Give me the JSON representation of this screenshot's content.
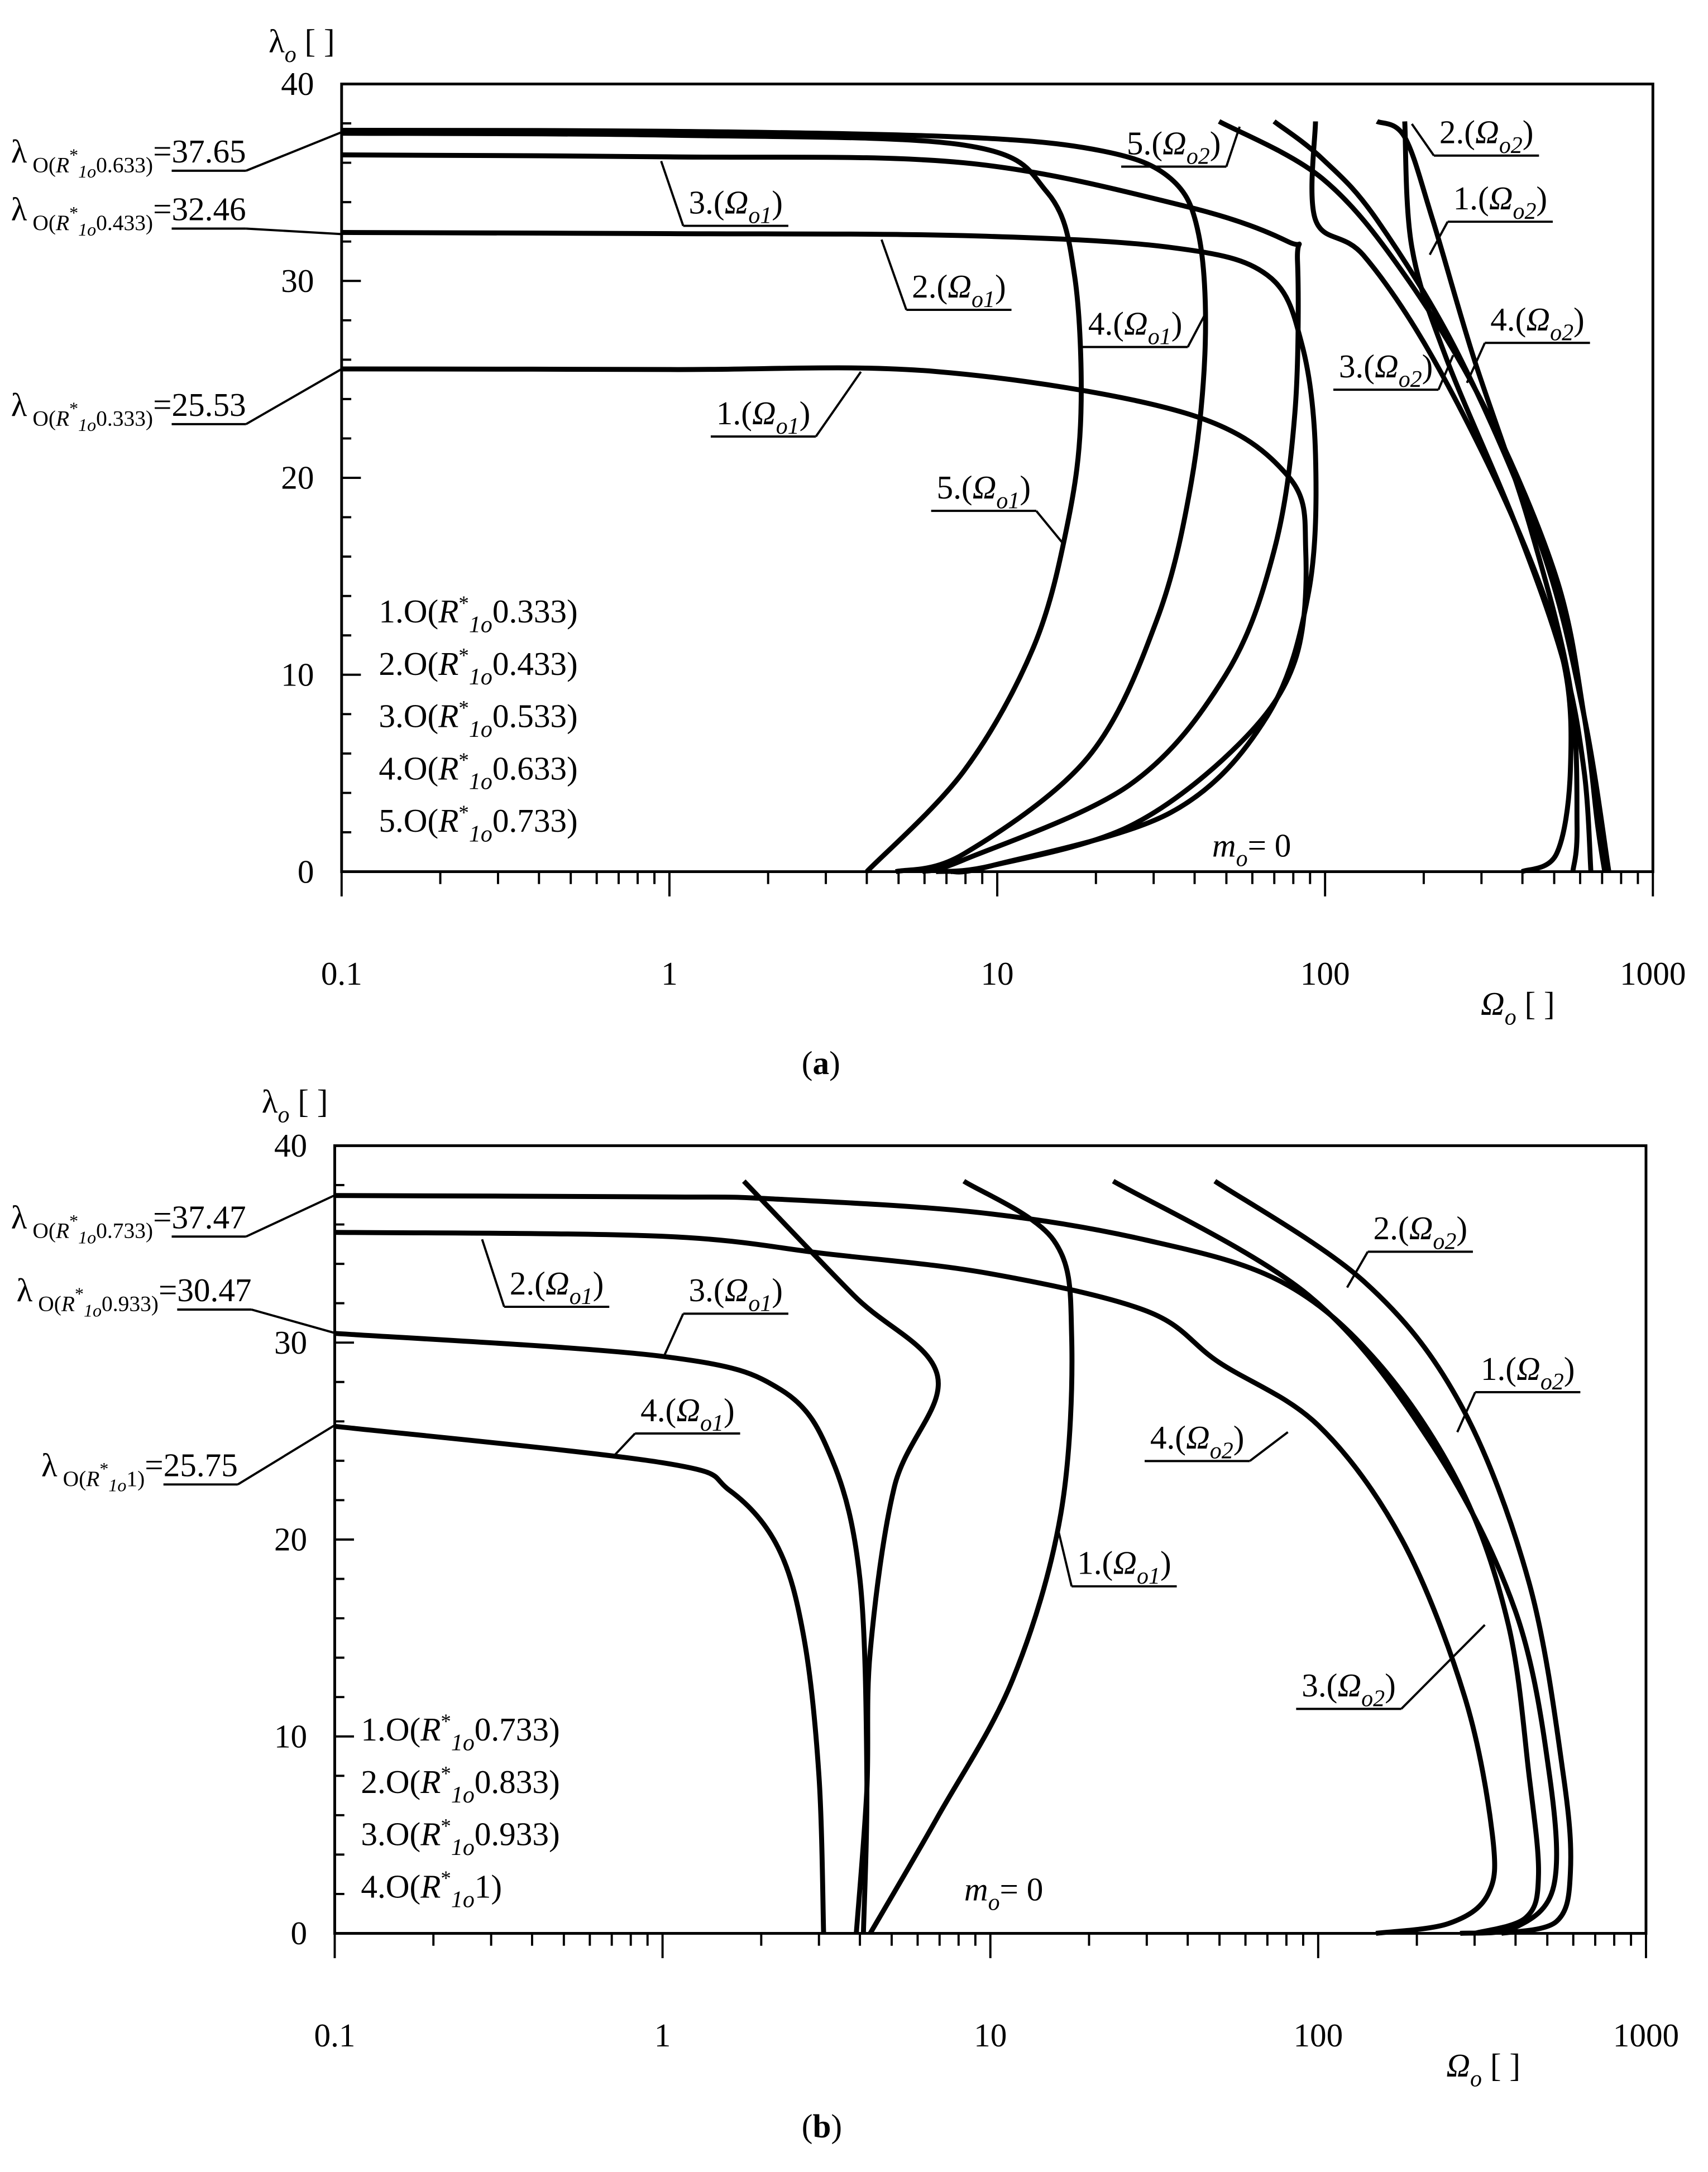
{
  "chart_data": [
    {
      "type": "line",
      "caption": [
        "(",
        "a",
        ")"
      ],
      "y_label": [
        "λ",
        "o",
        " [ ]"
      ],
      "x_label": [
        "Ω",
        "o",
        " [ ]"
      ],
      "annotation": [
        "m",
        "o",
        "= 0"
      ],
      "xscale": "log",
      "xlim": [
        0.1,
        1000
      ],
      "xticks": [
        0.1,
        1,
        10,
        100,
        1000
      ],
      "xminorticks": [
        0.2,
        0.3,
        0.4,
        0.5,
        0.6,
        0.7,
        0.8,
        0.9,
        2,
        3,
        4,
        5,
        6,
        7,
        8,
        9,
        20,
        30,
        40,
        50,
        60,
        70,
        80,
        90,
        200,
        300,
        400,
        500,
        600,
        700,
        800,
        900
      ],
      "ylim": [
        0,
        40
      ],
      "yticks": [
        0,
        10,
        20,
        30,
        40
      ],
      "yminorticks": [
        2,
        4,
        6,
        8,
        12,
        14,
        16,
        18,
        22,
        24,
        26,
        28,
        32,
        34,
        36,
        38
      ],
      "start_labels": [
        {
          "parts": [
            "λ",
            " O(",
            "R",
            "*",
            "1o",
            "0.633)",
            "="
          ],
          "value": 37.65
        },
        {
          "parts": [
            "λ",
            " O(",
            "R",
            "*",
            "1o",
            "0.433)",
            "="
          ],
          "value": 32.46
        },
        {
          "parts": [
            "λ",
            " O(",
            "R",
            "*",
            "1o",
            "0.333)",
            "="
          ],
          "value": 25.53
        }
      ],
      "legend": [
        [
          "1.O(",
          "R",
          "*",
          "1o",
          "0.333)"
        ],
        [
          "2.O(",
          "R",
          "*",
          "1o",
          "0.433)"
        ],
        [
          "3.O(",
          "R",
          "*",
          "1o",
          "0.533)"
        ],
        [
          "4.O(",
          "R",
          "*",
          "1o",
          "0.633)"
        ],
        [
          "5.O(",
          "R",
          "*",
          "1o",
          "0.733)"
        ]
      ],
      "series": [
        {
          "name": [
            "1.(",
            "Ω",
            "o1",
            ")"
          ],
          "color": "#000000",
          "x": [
            0.1,
            1,
            6.5,
            37.3,
            77,
            87.3,
            80.9,
            54.8,
            25.3,
            9.6,
            6.5
          ],
          "values": [
            25.53,
            25.5,
            25.4,
            23.3,
            20.1,
            16.3,
            10.7,
            6.5,
            2.3,
            0.3,
            0
          ]
        },
        {
          "name": [
            "2.(",
            "Ω",
            "o1",
            ")"
          ],
          "color": "#000000",
          "x": [
            0.1,
            1,
            7.9,
            33.8,
            66.6,
            84.9,
            93.5,
            89.1,
            66.6,
            33.8,
            9.6,
            7.2
          ],
          "values": [
            32.46,
            32.4,
            32.3,
            31.7,
            30.3,
            26.8,
            21.2,
            14.2,
            7.9,
            3.0,
            0.3,
            0
          ]
        },
        {
          "name": [
            "3.(",
            "Ω",
            "o1",
            ")"
          ],
          "color": "#000000",
          "x": [
            0.1,
            1,
            7.9,
            37.3,
            77,
            82.4,
            80.9,
            69.9,
            49.8,
            25.3,
            7.9,
            5.9
          ],
          "values": [
            36.4,
            36.3,
            36.0,
            33.8,
            32.0,
            31.0,
            23.3,
            16.3,
            10.0,
            4.4,
            0.6,
            0
          ]
        },
        {
          "name": [
            "4.(",
            "Ω",
            "o1",
            ")"
          ],
          "color": "#000000",
          "x": [
            0.1,
            1,
            7.9,
            20.9,
            33.8,
            41.1,
            43.1,
            39.1,
            30.7,
            18.9,
            7.9,
            4.9
          ],
          "values": [
            37.65,
            37.6,
            37.3,
            36.6,
            35.2,
            32.4,
            26.8,
            19.8,
            12.8,
            5.8,
            0.9,
            0
          ]
        },
        {
          "name": [
            "5.(",
            "Ω",
            "o1",
            ")"
          ],
          "color": "#000000",
          "x": [
            0.1,
            1,
            7.9,
            14.2,
            17.2,
            18.0,
            16.4,
            12.9,
            7.9,
            4.0
          ],
          "values": [
            37.5,
            37.4,
            36.9,
            34.5,
            30.3,
            23.3,
            17.7,
            11.4,
            5.1,
            0
          ]
        },
        {
          "name": [
            "1.(",
            "Ω",
            "o2",
            ")"
          ],
          "color": "#000000",
          "x": [
            175,
            184,
            234,
            380,
            533,
            617,
            647
          ],
          "values": [
            38.1,
            31.7,
            26.1,
            17.7,
            10.7,
            5.1,
            0
          ]
        },
        {
          "name": [
            "2.(",
            "Ω",
            "o2",
            ")"
          ],
          "color": "#000000",
          "x": [
            144,
            175,
            213,
            284,
            419,
            560,
            587,
            570
          ],
          "values": [
            38.1,
            37.3,
            33.1,
            26.1,
            17.7,
            9.3,
            2.3,
            0
          ]
        },
        {
          "name": [
            "3.(",
            "Ω",
            "o2",
            ")"
          ],
          "color": "#000000",
          "x": [
            93.5,
            93.5,
            131,
            213,
            380,
            533,
            560,
            508,
            399
          ],
          "values": [
            38.1,
            33.1,
            31.3,
            26.1,
            17.7,
            10.7,
            5.1,
            0.9,
            0
          ]
        },
        {
          "name": [
            "4.(",
            "Ω",
            "o2",
            ")"
          ],
          "color": "#000000",
          "x": [
            69.9,
            98.1,
            144,
            258,
            461,
            617,
            734
          ],
          "values": [
            38.1,
            36.2,
            33.1,
            26.1,
            16.3,
            7.9,
            0
          ]
        },
        {
          "name": [
            "5.(",
            "Ω",
            "o2",
            ")"
          ],
          "color": "#000000",
          "x": [
            47.5,
            98.1,
            175,
            313,
            508,
            617,
            679,
            713
          ],
          "values": [
            38.1,
            35.2,
            30.3,
            23.3,
            14.9,
            7.9,
            2.3,
            0
          ]
        }
      ]
    },
    {
      "type": "line",
      "caption": [
        "(",
        "b",
        ")"
      ],
      "y_label": [
        "λ",
        "o",
        " [ ]"
      ],
      "x_label": [
        "Ω",
        "o",
        " [ ]"
      ],
      "annotation": [
        "m",
        "o",
        "= 0"
      ],
      "xscale": "log",
      "xlim": [
        0.1,
        1000
      ],
      "xticks": [
        0.1,
        1,
        10,
        100,
        1000
      ],
      "xminorticks": [
        0.2,
        0.3,
        0.4,
        0.5,
        0.6,
        0.7,
        0.8,
        0.9,
        2,
        3,
        4,
        5,
        6,
        7,
        8,
        9,
        20,
        30,
        40,
        50,
        60,
        70,
        80,
        90,
        200,
        300,
        400,
        500,
        600,
        700,
        800,
        900
      ],
      "ylim": [
        0,
        40
      ],
      "yticks": [
        0,
        10,
        20,
        30,
        40
      ],
      "yminorticks": [
        2,
        4,
        6,
        8,
        12,
        14,
        16,
        18,
        22,
        24,
        26,
        28,
        32,
        34,
        36,
        38
      ],
      "start_labels": [
        {
          "parts": [
            "λ",
            " O(",
            "R",
            "*",
            "1o",
            "0.733)",
            "="
          ],
          "value": 37.47
        },
        {
          "parts": [
            "λ",
            " O(",
            "R",
            "*",
            "1o",
            "0.933)",
            "="
          ],
          "value": 30.47
        },
        {
          "parts": [
            "λ",
            " O(",
            "R",
            "*",
            "1o",
            "1)",
            "="
          ],
          "value": 25.75
        }
      ],
      "legend": [
        [
          "1.O(",
          "R",
          "*",
          "1o",
          "0.733)"
        ],
        [
          "2.O(",
          "R",
          "*",
          "1o",
          "0.833)"
        ],
        [
          "3.O(",
          "R",
          "*",
          "1o",
          "0.933)"
        ],
        [
          "4.O(",
          "R",
          "*",
          "1o",
          "1)"
        ]
      ],
      "series": [
        {
          "name": [
            "1.(",
            "Ω",
            "o1",
            ")"
          ],
          "color": "#000000",
          "x": [
            8.3,
            15.6,
            17.7,
            16.4,
            11.7,
            6.9,
            4.3
          ],
          "values": [
            38.2,
            35.2,
            30.3,
            21.3,
            12.9,
            5.9,
            0
          ]
        },
        {
          "name": [
            "2.(",
            "Ω",
            "o1",
            ")"
          ],
          "color": "#000000",
          "x": [
            1.77,
            3.83,
            6.9,
            5.1,
            4.3,
            4.2,
            3.9
          ],
          "values": [
            38.2,
            32.4,
            28.3,
            22.7,
            14.3,
            7.3,
            0
          ]
        },
        {
          "name": [
            "3.(",
            "Ω",
            "o1",
            ")"
          ],
          "color": "#000000",
          "x": [
            0.1,
            1,
            2.3,
            3.3,
            4.0,
            4.2,
            4.1
          ],
          "values": [
            30.47,
            29.3,
            27.6,
            24.0,
            18,
            8,
            0
          ]
        },
        {
          "name": [
            "4.(",
            "Ω",
            "o1",
            ")"
          ],
          "color": "#000000",
          "x": [
            0.1,
            1,
            1.6,
            2.25,
            2.7,
            3.0,
            3.1
          ],
          "values": [
            25.75,
            23.9,
            22.5,
            19.6,
            15,
            8,
            0
          ]
        },
        {
          "name": [
            "1.(",
            "Ω",
            "o2",
            ")"
          ],
          "color": "#000000",
          "x": [
            48.4,
            138,
            271,
            440,
            560,
            588,
            533,
            362
          ],
          "values": [
            38.2,
            33.1,
            26.9,
            17.8,
            8,
            3.1,
            0.6,
            0
          ]
        },
        {
          "name": [
            "2.(",
            "Ω",
            "o2",
            ")"
          ],
          "color": "#000000",
          "x": [
            23.7,
            93.5,
            223,
            399,
            508,
            523,
            399,
            271
          ],
          "values": [
            38.2,
            32.4,
            24.8,
            16.4,
            8,
            2.4,
            0.3,
            0
          ]
        },
        {
          "name": [
            "3.(",
            "Ω",
            "o2",
            ")"
          ],
          "color": "#000000",
          "x": [
            0.1,
            1,
            2.15,
            9.3,
            30,
            77,
            152,
            271,
            380,
            440,
            470,
            430,
            300
          ],
          "values": [
            37.47,
            37.4,
            37.3,
            36.6,
            35.2,
            33.1,
            29,
            22.7,
            15.7,
            8,
            3,
            0.8,
            0
          ]
        },
        {
          "name": [
            "4.(",
            "Ω",
            "o2",
            ")"
          ],
          "color": "#000000",
          "x": [
            0.1,
            1,
            3.2,
            10,
            30,
            49.8,
            100,
            180,
            280,
            340,
            330,
            250,
            150
          ],
          "values": [
            35.6,
            35.4,
            34.5,
            33.5,
            31.6,
            29,
            25.8,
            20,
            12,
            5,
            2,
            0.5,
            0
          ]
        }
      ]
    }
  ]
}
